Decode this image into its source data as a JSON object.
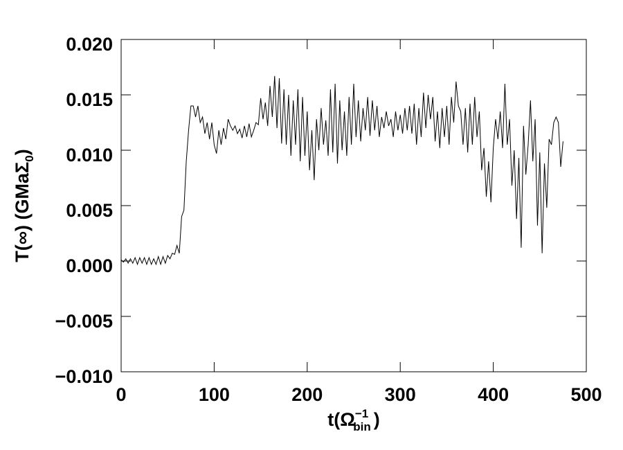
{
  "chart_data": {
    "type": "line",
    "color": "#000000",
    "x_label": {
      "text": "t(Ω",
      "sup": "−1",
      "sub": "bin",
      "end": ")"
    },
    "y_label": {
      "text": "T(∞) (GMaΣ",
      "sub": "0",
      "end": ")"
    },
    "xlim": [
      0,
      500
    ],
    "xticks": [
      0,
      100,
      200,
      300,
      400,
      500
    ],
    "ylim": [
      -0.01,
      0.02
    ],
    "yticks": [
      {
        "value": -0.01,
        "label": "−0.010"
      },
      {
        "value": -0.005,
        "label": "−0.005"
      },
      {
        "value": 0,
        "label": "0.000"
      },
      {
        "value": 0.005,
        "label": "0.005"
      },
      {
        "value": 0.01,
        "label": "0.010"
      },
      {
        "value": 0.015,
        "label": "0.015"
      },
      {
        "value": 0.02,
        "label": "0.020"
      }
    ],
    "x": [
      0,
      2.5,
      5,
      7.5,
      10,
      12.5,
      15,
      17.5,
      20,
      22.5,
      25,
      27.5,
      30,
      32.5,
      35,
      37.5,
      40,
      42.5,
      45,
      47.5,
      50,
      52.5,
      55,
      57.5,
      60,
      62.5,
      65,
      67.5,
      70,
      72.5,
      75,
      77.5,
      80,
      82.5,
      85,
      87.5,
      90,
      92.5,
      95,
      97.5,
      100,
      102.5,
      105,
      107.5,
      110,
      112.5,
      115,
      117.5,
      120,
      122.5,
      125,
      127.5,
      130,
      132.5,
      135,
      137.5,
      140,
      142.5,
      145,
      147.5,
      150,
      152.5,
      155,
      157.5,
      160,
      162.5,
      165,
      167.5,
      170,
      172.5,
      175,
      177.5,
      180,
      182.5,
      185,
      187.5,
      190,
      192.5,
      195,
      197.5,
      200,
      202.5,
      205,
      207.5,
      210,
      212.5,
      215,
      217.5,
      220,
      222.5,
      225,
      227.5,
      230,
      232.5,
      235,
      237.5,
      240,
      242.5,
      245,
      247.5,
      250,
      252.5,
      255,
      257.5,
      260,
      262.5,
      265,
      267.5,
      270,
      272.5,
      275,
      277.5,
      280,
      282.5,
      285,
      287.5,
      290,
      292.5,
      295,
      297.5,
      300,
      302.5,
      305,
      307.5,
      310,
      312.5,
      315,
      317.5,
      320,
      322.5,
      325,
      327.5,
      330,
      332.5,
      335,
      337.5,
      340,
      342.5,
      345,
      347.5,
      350,
      352.5,
      355,
      357.5,
      360,
      362.5,
      365,
      367.5,
      370,
      372.5,
      375,
      377.5,
      380,
      382.5,
      385,
      387.5,
      390,
      392.5,
      395,
      397.5,
      400,
      402.5,
      405,
      407.5,
      410,
      412.5,
      415,
      417.5,
      420,
      422.5,
      425,
      427.5,
      430,
      432.5,
      435,
      437.5,
      440,
      442.5,
      445,
      447.5,
      450,
      452.5,
      455,
      457.5,
      460,
      462.5,
      465,
      467.5,
      470,
      472.5,
      475
    ],
    "values": [
      0.0001,
      -0.0001,
      0.0002,
      -0.0002,
      0.0002,
      -0.0002,
      0.0003,
      -0.0003,
      0.0003,
      -0.0002,
      0.0003,
      -0.0003,
      0.0003,
      -0.0003,
      0.0002,
      -0.0003,
      0.0004,
      -0.0003,
      0.0004,
      -0.0002,
      0.0005,
      0.0002,
      0.0007,
      0.0006,
      0.0014,
      0.0007,
      0.004,
      0.0046,
      0.009,
      0.0118,
      0.014,
      0.014,
      0.013,
      0.014,
      0.0125,
      0.013,
      0.0115,
      0.0125,
      0.011,
      0.0125,
      0.0105,
      0.0097,
      0.0118,
      0.0105,
      0.012,
      0.011,
      0.0128,
      0.0122,
      0.0118,
      0.0122,
      0.0115,
      0.0119,
      0.0111,
      0.0122,
      0.0112,
      0.0124,
      0.0112,
      0.0118,
      0.0125,
      0.0123,
      0.0147,
      0.0128,
      0.0143,
      0.0122,
      0.0158,
      0.013,
      0.0167,
      0.012,
      0.0165,
      0.0106,
      0.0155,
      0.0105,
      0.015,
      0.0095,
      0.0145,
      0.0105,
      0.0155,
      0.009,
      0.0148,
      0.0095,
      0.0135,
      0.0082,
      0.0118,
      0.0073,
      0.0128,
      0.01,
      0.0138,
      0.0105,
      0.0127,
      0.0095,
      0.0155,
      0.0098,
      0.016,
      0.0088,
      0.0145,
      0.01,
      0.0135,
      0.0095,
      0.0148,
      0.0105,
      0.016,
      0.0112,
      0.0145,
      0.0108,
      0.0138,
      0.0118,
      0.0148,
      0.0113,
      0.0145,
      0.0118,
      0.014,
      0.0112,
      0.013,
      0.012,
      0.0135,
      0.0122,
      0.0128,
      0.0112,
      0.0135,
      0.0118,
      0.0132,
      0.0115,
      0.0138,
      0.0118,
      0.014,
      0.0115,
      0.0142,
      0.0105,
      0.0138,
      0.0112,
      0.0152,
      0.012,
      0.015,
      0.0128,
      0.0148,
      0.0108,
      0.0135,
      0.0102,
      0.0138,
      0.0112,
      0.014,
      0.0105,
      0.0148,
      0.0125,
      0.0162,
      0.014,
      0.0135,
      0.0105,
      0.0138,
      0.0098,
      0.0142,
      0.0105,
      0.0148,
      0.0112,
      0.0135,
      0.0082,
      0.0102,
      0.0058,
      0.009,
      0.0053,
      0.0102,
      0.0128,
      0.011,
      0.0135,
      0.0102,
      0.016,
      0.0105,
      0.0128,
      0.0068,
      0.01,
      0.0038,
      0.0093,
      0.0012,
      0.0122,
      0.0078,
      0.0105,
      0.0145,
      0.009,
      0.0128,
      0.0032,
      0.0098,
      0.0007,
      0.0088,
      0.0048,
      0.011,
      0.0105,
      0.0125,
      0.013,
      0.0125,
      0.0085,
      0.0108
    ]
  }
}
